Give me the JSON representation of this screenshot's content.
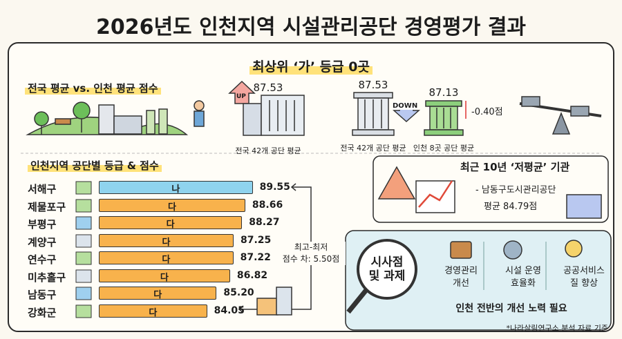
{
  "title": "2026년도 인천지역 시설관리공단 경영평가 결과",
  "top_banner": "최상위 ‘가’ 등급 0곳",
  "comparison": {
    "heading": "전국 평균 vs. 인천 평균 점수",
    "up_label": "UP",
    "down_label": "DOWN",
    "items": [
      {
        "label": "전국 42개 공단 평균",
        "value": 87.53
      },
      {
        "label": "전국 42개 공단 평균",
        "value": 87.53
      },
      {
        "label": "인천 8곳 공단 평균",
        "value": 87.13
      }
    ],
    "difference": "-0.40점"
  },
  "grades": {
    "heading": "인천지역 공단별 등급 & 점수",
    "categories": [
      "서해구",
      "제물포구",
      "부평구",
      "계양구",
      "연수구",
      "미추홀구",
      "남동구",
      "강화군"
    ],
    "grades": [
      "나",
      "다",
      "다",
      "다",
      "다",
      "다",
      "다",
      "다"
    ],
    "values": [
      89.55,
      88.66,
      88.27,
      87.25,
      87.22,
      86.82,
      85.2,
      84.05
    ],
    "value_labels": [
      "89.55",
      "88.66",
      "88.27",
      "87.25",
      "87.22",
      "86.82",
      "85.20",
      "84.05"
    ],
    "colors": [
      "#8fd3ee",
      "#f8b24c",
      "#f8b24c",
      "#f8b24c",
      "#f8b24c",
      "#f8b24c",
      "#f8b24c",
      "#f8b24c"
    ],
    "xlim": [
      71,
      92
    ],
    "spread_label": "최고-최저\n점수 차: 5.50점"
  },
  "low_average": {
    "heading": "최근 10년 ‘저평균’ 기관",
    "name": "- 남동구도시관리공단",
    "score": "평균 84.79점"
  },
  "implications": {
    "center": "시사점\n및 과제",
    "items": [
      "경영관리\n개선",
      "시설 운영\n효율화",
      "공공서비스\n질 향상"
    ],
    "conclusion": "인천 전반의 개선 노력 필요"
  },
  "footnote": "*나라살림연구소 분석 자료 기준"
}
